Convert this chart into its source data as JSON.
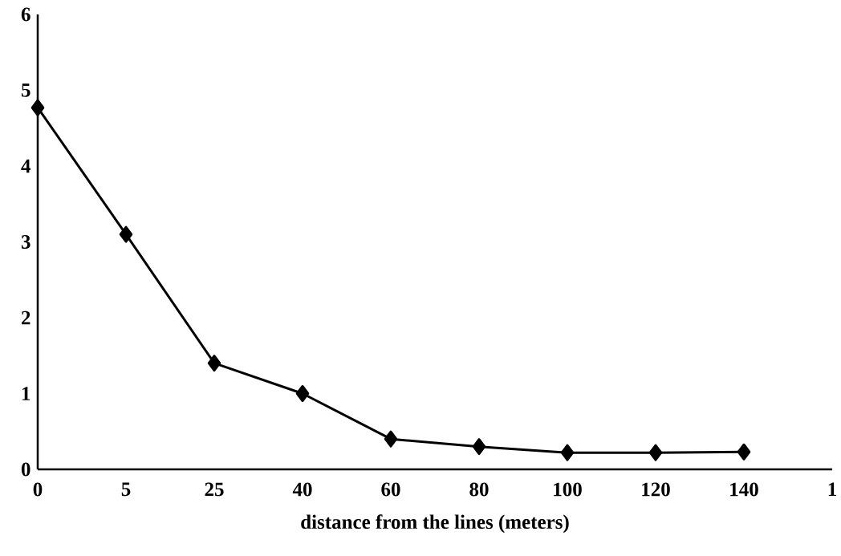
{
  "chart_data": {
    "type": "line",
    "xlabel": "distance from the lines (meters)",
    "categories": [
      "0",
      "5",
      "25",
      "40",
      "60",
      "80",
      "100",
      "120",
      "140",
      "1"
    ],
    "series": [
      {
        "color": "#000000",
        "values": [
          4.77,
          3.1,
          1.4,
          1.0,
          0.4,
          0.3,
          0.22,
          0.22,
          0.23,
          null
        ]
      }
    ],
    "ylim": [
      0,
      6
    ],
    "yticks": [
      0,
      1,
      2,
      3,
      4,
      5,
      6
    ],
    "marker": "diamond",
    "line_style": "solid"
  }
}
